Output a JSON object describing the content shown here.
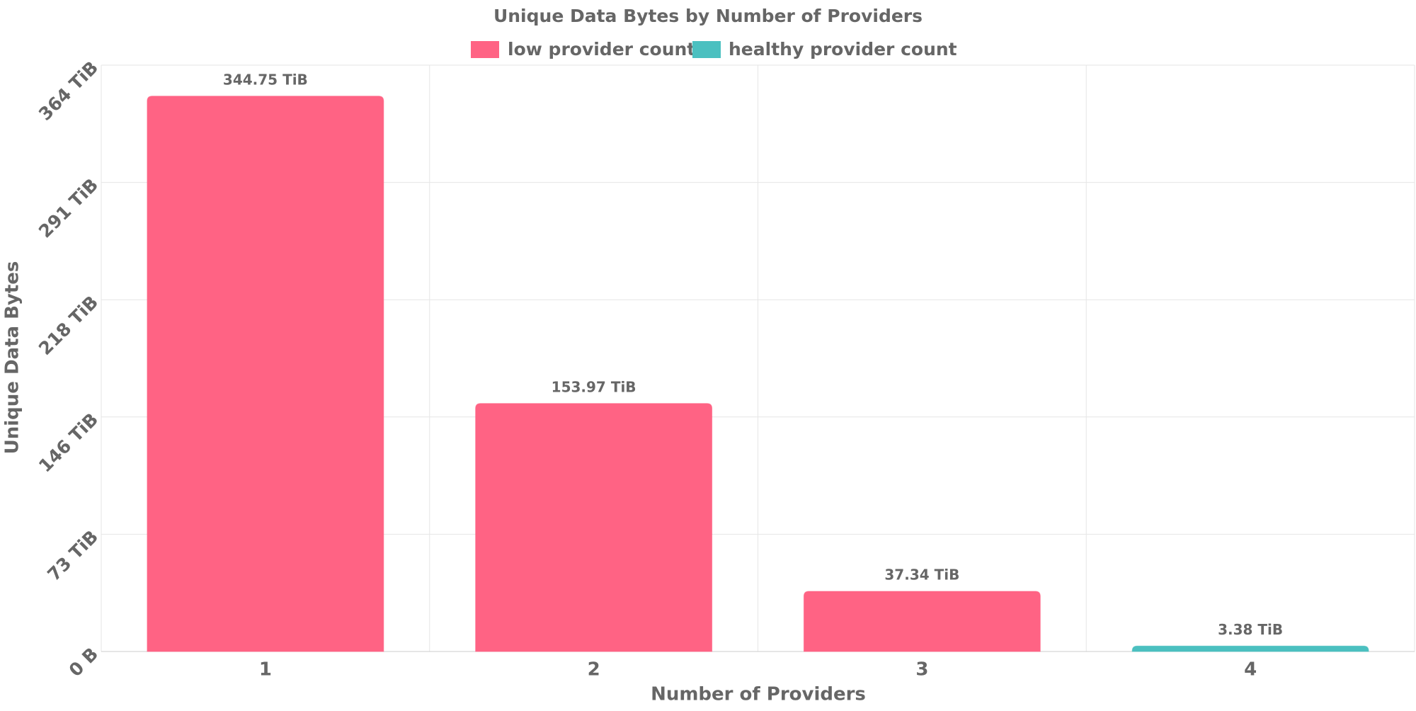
{
  "chart_data": {
    "type": "bar",
    "title": "Unique Data Bytes by Number of Providers",
    "x_label": "Number of Providers",
    "y_label": "Unique Data Bytes",
    "categories": [
      "1",
      "2",
      "3",
      "4"
    ],
    "series": [
      {
        "name": "low provider count",
        "color": "#ff6384",
        "values": [
          344.75,
          153.97,
          37.34,
          null
        ],
        "value_labels": [
          "344.75 TiB",
          "153.97 TiB",
          "37.34 TiB",
          null
        ]
      },
      {
        "name": "healthy provider count",
        "color": "#4bc0c0",
        "values": [
          null,
          null,
          null,
          3.38
        ],
        "value_labels": [
          null,
          null,
          null,
          "3.38 TiB"
        ]
      }
    ],
    "ylim": [
      0,
      364
    ],
    "yticks": [
      {
        "value": 0,
        "label": "0 B"
      },
      {
        "value": 72.8,
        "label": "73 TiB"
      },
      {
        "value": 145.6,
        "label": "146 TiB"
      },
      {
        "value": 218.4,
        "label": "218 TiB"
      },
      {
        "value": 291.2,
        "label": "291 TiB"
      },
      {
        "value": 364,
        "label": "364 TiB"
      }
    ],
    "grid": true,
    "legend": "top"
  }
}
